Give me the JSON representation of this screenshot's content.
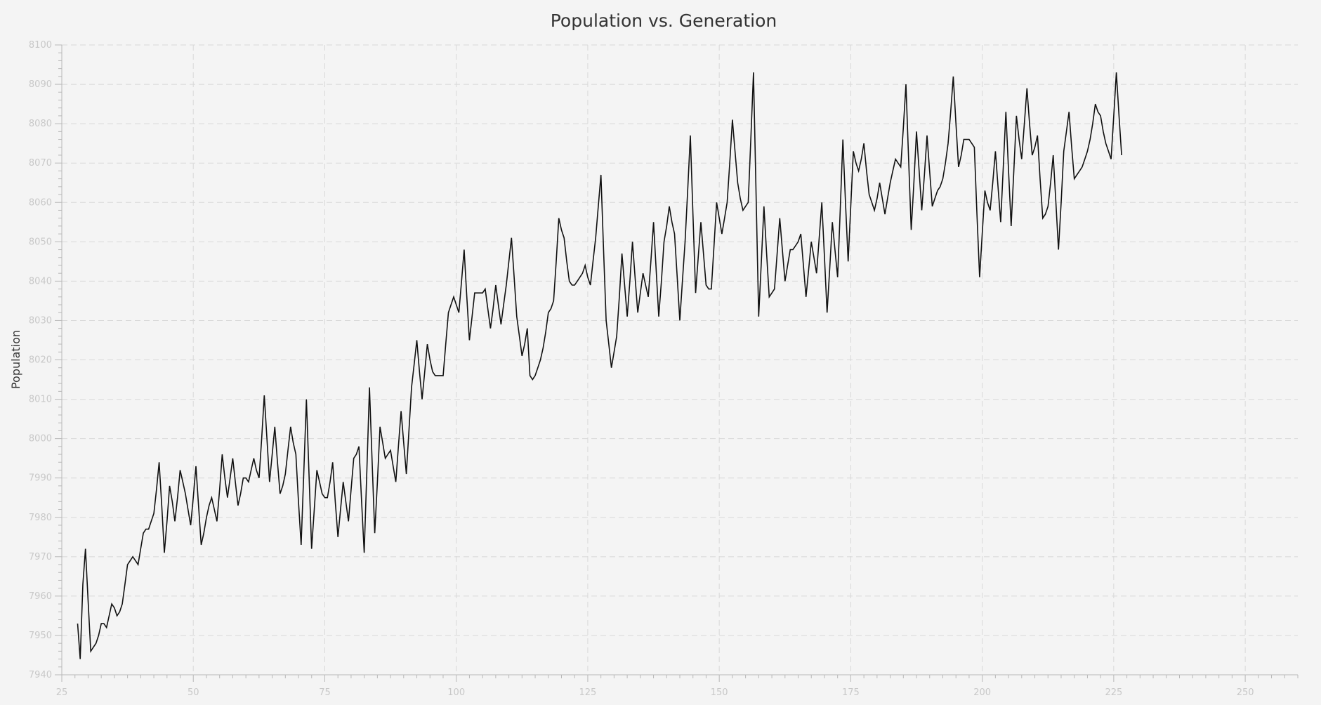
{
  "chart_data": {
    "type": "line",
    "title": "Population vs. Generation",
    "xlabel": "",
    "ylabel": "Population",
    "xlim": [
      25,
      260
    ],
    "ylim": [
      7940,
      8100
    ],
    "x_ticks": [
      25,
      50,
      75,
      100,
      125,
      150,
      175,
      200,
      225,
      250
    ],
    "y_ticks": [
      7940,
      7950,
      7960,
      7970,
      7980,
      7990,
      8000,
      8010,
      8020,
      8030,
      8040,
      8050,
      8060,
      8070,
      8080,
      8090,
      8100
    ],
    "x_minor_step": 2.5,
    "y_minor_step": 2,
    "grid": true,
    "series": [
      {
        "name": "Population",
        "x_start": 28,
        "x_step": 0.5,
        "values": [
          7953,
          7944,
          7963,
          7972,
          7959,
          7946,
          7947,
          7948,
          7950,
          7953,
          7953,
          7952,
          7955,
          7958,
          7957,
          7955,
          7956,
          7958,
          7963,
          7968,
          7969,
          7970,
          7969,
          7968,
          7972,
          7976,
          7977,
          7977,
          7979,
          7981,
          7987,
          7994,
          7983,
          7971,
          7979,
          7988,
          7984,
          7979,
          7985,
          7992,
          7989,
          7986,
          7982,
          7978,
          7985,
          7993,
          7983,
          7973,
          7976,
          7980,
          7983,
          7985,
          7982,
          7979,
          7987,
          7996,
          7990,
          7985,
          7990,
          7995,
          7989,
          7983,
          7986,
          7990,
          7990,
          7989,
          7992,
          7995,
          7992,
          7990,
          8000,
          8011,
          8000,
          7989,
          7996,
          8003,
          7994,
          7986,
          7988,
          7991,
          7997,
          8003,
          7999,
          7996,
          7984,
          7973,
          7991,
          8010,
          7991,
          7972,
          7982,
          7992,
          7989,
          7986,
          7985,
          7985,
          7989,
          7994,
          7984,
          7975,
          7982,
          7989,
          7984,
          7979,
          7987,
          7995,
          7996,
          7998,
          7984,
          7971,
          7992,
          8013,
          7994,
          7976,
          7989,
          8003,
          7999,
          7995,
          7996,
          7997,
          7993,
          7989,
          7998,
          8007,
          7999,
          7991,
          8002,
          8013,
          8019,
          8025,
          8017,
          8010,
          8017,
          8024,
          8020,
          8017,
          8016,
          8016,
          8016,
          8016,
          8024,
          8032,
          8034,
          8036,
          8034,
          8032,
          8040,
          8048,
          8036,
          8025,
          8031,
          8037,
          8037,
          8037,
          8037,
          8038,
          8033,
          8028,
          8033,
          8039,
          8034,
          8029,
          8034,
          8039,
          8045,
          8051,
          8041,
          8031,
          8026,
          8021,
          8024,
          8028,
          8016,
          8015,
          8016,
          8018,
          8020,
          8023,
          8027,
          8032,
          8033,
          8035,
          8045,
          8056,
          8053,
          8051,
          8045,
          8040,
          8039,
          8039,
          8040,
          8041,
          8042,
          8044,
          8041,
          8039,
          8045,
          8051,
          8059,
          8067,
          8048,
          8030,
          8024,
          8018,
          8022,
          8026,
          8036,
          8047,
          8039,
          8031,
          8040,
          8050,
          8041,
          8032,
          8037,
          8042,
          8039,
          8036,
          8045,
          8055,
          8043,
          8031,
          8040,
          8050,
          8054,
          8059,
          8055,
          8052,
          8041,
          8030,
          8040,
          8050,
          8063,
          8077,
          8057,
          8037,
          8046,
          8055,
          8047,
          8039,
          8038,
          8038,
          8049,
          8060,
          8056,
          8052,
          8056,
          8060,
          8070,
          8081,
          8073,
          8065,
          8061,
          8058,
          8059,
          8060,
          8076,
          8093,
          8062,
          8031,
          8045,
          8059,
          8047,
          8036,
          8037,
          8038,
          8047,
          8056,
          8048,
          8040,
          8044,
          8048,
          8048,
          8049,
          8050,
          8052,
          8044,
          8036,
          8043,
          8050,
          8046,
          8042,
          8051,
          8060,
          8046,
          8032,
          8043,
          8055,
          8048,
          8041,
          8058,
          8076,
          8060,
          8045,
          8059,
          8073,
          8070,
          8068,
          8071,
          8075,
          8068,
          8062,
          8060,
          8058,
          8061,
          8065,
          8061,
          8057,
          8061,
          8065,
          8068,
          8071,
          8070,
          8069,
          8079,
          8090,
          8071,
          8053,
          8065,
          8078,
          8068,
          8058,
          8067,
          8077,
          8068,
          8059,
          8061,
          8063,
          8064,
          8066,
          8070,
          8075,
          8083,
          8092,
          8080,
          8069,
          8072,
          8076,
          8076,
          8076,
          8075,
          8074,
          8057,
          8041,
          8052,
          8063,
          8060,
          8058,
          8065,
          8073,
          8064,
          8055,
          8069,
          8083,
          8068,
          8054,
          8068,
          8082,
          8076,
          8071,
          8080,
          8089,
          8080,
          8072,
          8074,
          8077,
          8066,
          8056,
          8057,
          8059,
          8065,
          8072,
          8060,
          8048,
          8060,
          8073,
          8078,
          8083,
          8074,
          8066,
          8067,
          8068,
          8069,
          8071,
          8073,
          8076,
          8080,
          8085,
          8083,
          8082,
          8078,
          8075,
          8073,
          8071,
          8082,
          8093,
          8082,
          8072
        ]
      }
    ]
  }
}
